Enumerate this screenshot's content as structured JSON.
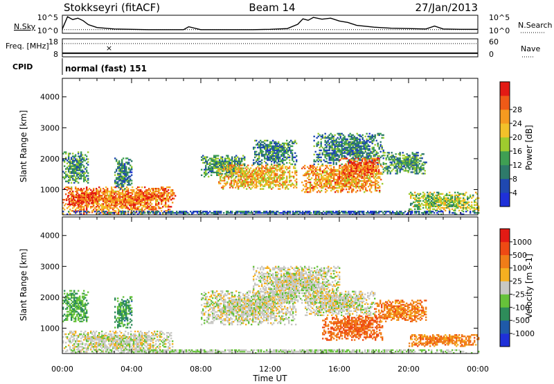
{
  "header": {
    "station": "Stokkseyri (fitACF)",
    "beam": "Beam 14",
    "date": "27/Jan/2013"
  },
  "chart_data": [
    {
      "id": "noise-panel",
      "type": "line",
      "left_label": "N.Sky",
      "right_label": "N.Search",
      "left_ticks": [
        "10^5",
        "10^0"
      ],
      "right_ticks": [
        "10^5",
        "10^0"
      ],
      "series": [
        {
          "name": "N.Sky",
          "style": "solid",
          "x": [
            0,
            0.3,
            0.6,
            0.9,
            1.2,
            1.5,
            2,
            3,
            4,
            5,
            6,
            7,
            7.3,
            8,
            9,
            10,
            11,
            12,
            13,
            13.6,
            13.9,
            14.2,
            14.5,
            15,
            15.5,
            16,
            16.5,
            17,
            18,
            19,
            20,
            21,
            21.5,
            22,
            23,
            24
          ],
          "y": [
            1.2,
            4.6,
            3.8,
            4.2,
            3.5,
            2.4,
            1.6,
            1.2,
            1.1,
            1.0,
            1.0,
            1.0,
            1.8,
            1.0,
            1.0,
            1.0,
            1.0,
            1.1,
            1.3,
            2.5,
            4.0,
            3.6,
            4.4,
            3.9,
            4.2,
            3.4,
            3.0,
            2.2,
            1.7,
            1.4,
            1.3,
            1.2,
            2.0,
            1.2,
            1.1,
            1.1
          ]
        },
        {
          "name": "N.Search",
          "style": "dotted",
          "x": [
            0,
            24
          ],
          "y": [
            1.0,
            1.0
          ]
        }
      ]
    },
    {
      "id": "freq-panel",
      "type": "line",
      "left_label": "Freq. [MHz]",
      "right_label": "Nave",
      "left_ticks": [
        18,
        8
      ],
      "right_ticks": [
        60,
        0
      ],
      "series": [
        {
          "name": "Freq.",
          "style": "solid",
          "x": [
            0,
            24
          ],
          "y": [
            10,
            10
          ]
        },
        {
          "name": "Nave",
          "style": "dotted",
          "x": [
            0,
            24
          ],
          "y": [
            44,
            44
          ]
        }
      ],
      "annotations": [
        {
          "x": 2.7,
          "text": "×"
        }
      ]
    },
    {
      "id": "cpid-panel",
      "type": "table",
      "left_label": "CPID",
      "text": "normal (fast) 151"
    },
    {
      "id": "power-panel",
      "type": "heatmap",
      "title": "",
      "xlabel": "",
      "ylabel": "Slant Range [km]",
      "xlim": [
        0,
        24
      ],
      "ylim": [
        180,
        4600
      ],
      "yticks": [
        1000,
        2000,
        3000,
        4000
      ],
      "colorbar": {
        "label": "Power [dB]",
        "ticks": [
          "4",
          "8",
          "12",
          "16",
          "20",
          "24",
          "28"
        ],
        "colors": [
          "#1f30d8",
          "#1f48b0",
          "#2e7a6a",
          "#3f9f53",
          "#9ecb2e",
          "#f2c12a",
          "#f59a20",
          "#ef5a17",
          "#e31a14"
        ]
      },
      "regions": [
        {
          "t0": 0.0,
          "t1": 6.4,
          "r0": 200,
          "r1": 1100,
          "v": 0.75
        },
        {
          "t0": 0.2,
          "t1": 2.0,
          "r0": 500,
          "r1": 900,
          "v": 0.9
        },
        {
          "t0": 0.0,
          "t1": 1.5,
          "r0": 1200,
          "r1": 2200,
          "v": 0.35
        },
        {
          "t0": 3.0,
          "t1": 4.0,
          "r0": 1000,
          "r1": 2000,
          "v": 0.3
        },
        {
          "t0": 4.0,
          "t1": 6.5,
          "r0": 600,
          "r1": 900,
          "v": 0.8
        },
        {
          "t0": 8.0,
          "t1": 10.5,
          "r0": 1400,
          "r1": 2100,
          "v": 0.35
        },
        {
          "t0": 9.0,
          "t1": 13.5,
          "r0": 1000,
          "r1": 1800,
          "v": 0.65
        },
        {
          "t0": 11.0,
          "t1": 13.5,
          "r0": 1800,
          "r1": 2600,
          "v": 0.3
        },
        {
          "t0": 13.8,
          "t1": 18.5,
          "r0": 900,
          "r1": 1800,
          "v": 0.7
        },
        {
          "t0": 14.5,
          "t1": 18.5,
          "r0": 1800,
          "r1": 2800,
          "v": 0.3
        },
        {
          "t0": 16.0,
          "t1": 18.3,
          "r0": 1400,
          "r1": 2000,
          "v": 0.85
        },
        {
          "t0": 18.5,
          "t1": 21.0,
          "r0": 1500,
          "r1": 2200,
          "v": 0.35
        },
        {
          "t0": 20.0,
          "t1": 24.0,
          "r0": 300,
          "r1": 900,
          "v": 0.5
        },
        {
          "t0": 0.0,
          "t1": 24.0,
          "r0": 180,
          "r1": 300,
          "v": 0.2
        }
      ]
    },
    {
      "id": "velocity-panel",
      "type": "heatmap",
      "title": "",
      "xlabel": "Time UT",
      "ylabel": "Slant Range [km]",
      "xlim": [
        0,
        24
      ],
      "ylim": [
        180,
        4600
      ],
      "xticks": [
        "00:00",
        "04:00",
        "08:00",
        "12:00",
        "16:00",
        "20:00",
        "00:00"
      ],
      "yticks": [
        1000,
        2000,
        3000,
        4000
      ],
      "colorbar": {
        "label": "Velocity [m s-1]",
        "ticks": [
          "1000",
          "500",
          "100",
          "25",
          "-25",
          "-100",
          "-500",
          "-1000"
        ],
        "colors": [
          "#1f30d8",
          "#1f5aa8",
          "#2e8c5a",
          "#66c23a",
          "#c8c8c4",
          "#f5b020",
          "#f07d18",
          "#ee4a14",
          "#e31a14"
        ]
      },
      "regions": [
        {
          "t0": 0.0,
          "t1": 6.4,
          "r0": 200,
          "r1": 900,
          "v": 0.5
        },
        {
          "t0": 0.0,
          "t1": 1.5,
          "r0": 1200,
          "r1": 2200,
          "v": 0.35
        },
        {
          "t0": 3.0,
          "t1": 4.0,
          "r0": 1000,
          "r1": 2000,
          "v": 0.3
        },
        {
          "t0": 8.0,
          "t1": 13.5,
          "r0": 1100,
          "r1": 2200,
          "v": 0.5
        },
        {
          "t0": 11.0,
          "t1": 16.0,
          "r0": 1800,
          "r1": 3000,
          "v": 0.5
        },
        {
          "t0": 14.0,
          "t1": 18.0,
          "r0": 1400,
          "r1": 2200,
          "v": 0.5
        },
        {
          "t0": 15.0,
          "t1": 18.5,
          "r0": 600,
          "r1": 1400,
          "v": 0.78
        },
        {
          "t0": 18.0,
          "t1": 21.0,
          "r0": 1200,
          "r1": 1900,
          "v": 0.72
        },
        {
          "t0": 20.0,
          "t1": 24.0,
          "r0": 400,
          "r1": 800,
          "v": 0.72
        },
        {
          "t0": 0.0,
          "t1": 24.0,
          "r0": 180,
          "r1": 300,
          "v": 0.45
        }
      ]
    }
  ]
}
